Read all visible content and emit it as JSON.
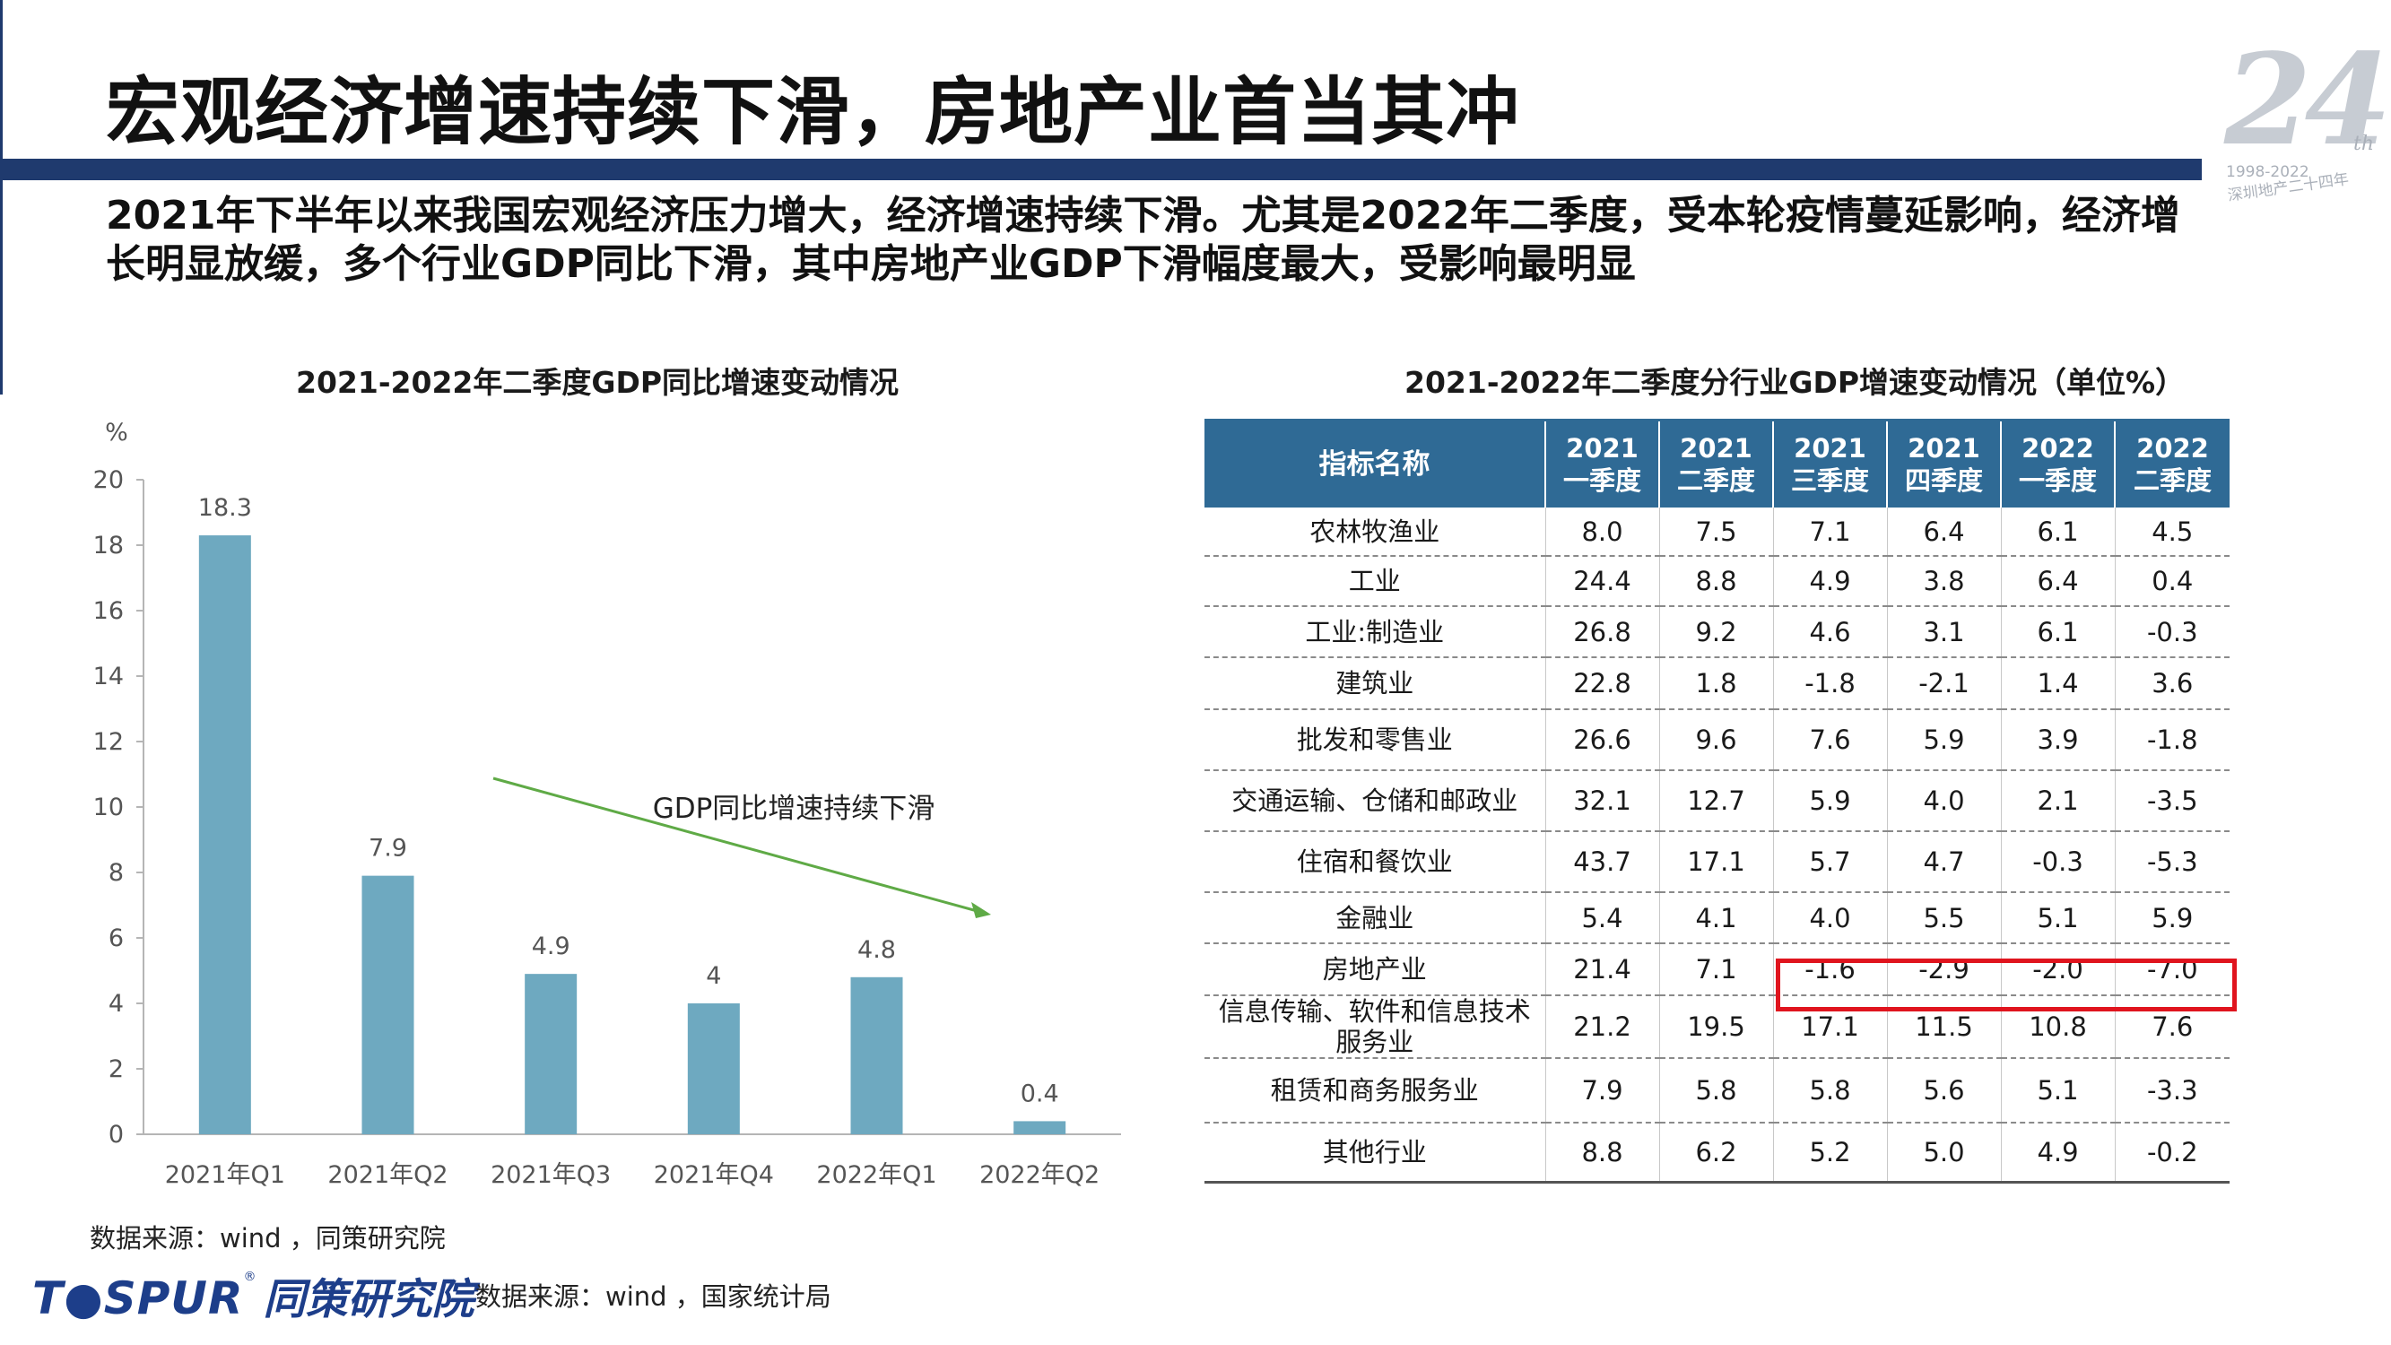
{
  "page": {
    "title": "宏观经济增速持续下滑，房地产业首当其冲",
    "summary": "2021年下半年以来我国宏观经济压力增大，经济增速持续下滑。尤其是2022年二季度，受本轮疫情蔓延影响，经济增长明显放缓，多个行业GDP同比下滑，其中房地产业GDP下滑幅度最大，受影响最明显"
  },
  "watermark": {
    "number": "24",
    "suffix": "th",
    "years": "1998-2022",
    "text": "深圳地产二十四年"
  },
  "chart_data": {
    "type": "bar",
    "title": "2021-2022年二季度GDP同比增速变动情况",
    "ylabel": "%",
    "ylim": [
      0,
      20
    ],
    "yticks": [
      0,
      2,
      4,
      6,
      8,
      10,
      12,
      14,
      16,
      18,
      20
    ],
    "categories": [
      "2021年Q1",
      "2021年Q2",
      "2021年Q3",
      "2021年Q4",
      "2022年Q1",
      "2022年Q2"
    ],
    "values": [
      18.3,
      7.9,
      4.9,
      4,
      4.8,
      0.4
    ],
    "value_labels": [
      "18.3",
      "7.9",
      "4.9",
      "4",
      "4.8",
      "0.4"
    ],
    "bar_color": "#6ea9c0",
    "grid": false,
    "annotation": {
      "text": "GDP同比增速持续下滑",
      "arrow_color": "#5faa46"
    }
  },
  "table": {
    "title": "2021-2022年二季度分行业GDP增速变动情况（单位%）",
    "headers": [
      [
        "指标名称",
        ""
      ],
      [
        "2021",
        "一季度"
      ],
      [
        "2021",
        "二季度"
      ],
      [
        "2021",
        "三季度"
      ],
      [
        "2021",
        "四季度"
      ],
      [
        "2022",
        "一季度"
      ],
      [
        "2022",
        "二季度"
      ]
    ],
    "rows": [
      [
        "农林牧渔业",
        "8.0",
        "7.5",
        "7.1",
        "6.4",
        "6.1",
        "4.5"
      ],
      [
        "工业",
        "24.4",
        "8.8",
        "4.9",
        "3.8",
        "6.4",
        "0.4"
      ],
      [
        "工业:制造业",
        "26.8",
        "9.2",
        "4.6",
        "3.1",
        "6.1",
        "-0.3"
      ],
      [
        "建筑业",
        "22.8",
        "1.8",
        "-1.8",
        "-2.1",
        "1.4",
        "3.6"
      ],
      [
        "批发和零售业",
        "26.6",
        "9.6",
        "7.6",
        "5.9",
        "3.9",
        "-1.8"
      ],
      [
        "交通运输、仓储和邮政业",
        "32.1",
        "12.7",
        "5.9",
        "4.0",
        "2.1",
        "-3.5"
      ],
      [
        "住宿和餐饮业",
        "43.7",
        "17.1",
        "5.7",
        "4.7",
        "-0.3",
        "-5.3"
      ],
      [
        "金融业",
        "5.4",
        "4.1",
        "4.0",
        "5.5",
        "5.1",
        "5.9"
      ],
      [
        "房地产业",
        "21.4",
        "7.1",
        "-1.6",
        "-2.9",
        "-2.0",
        "-7.0"
      ],
      [
        "信息传输、软件和信息技术服务业",
        "21.2",
        "19.5",
        "17.1",
        "11.5",
        "10.8",
        "7.6"
      ],
      [
        "租赁和商务服务业",
        "7.9",
        "5.8",
        "5.8",
        "5.6",
        "5.1",
        "-3.3"
      ],
      [
        "其他行业",
        "8.8",
        "6.2",
        "5.2",
        "5.0",
        "4.9",
        "-0.2"
      ]
    ],
    "highlight_color": "#e0141e",
    "header_color": "#2f6a95"
  },
  "sources": {
    "chart_source": "数据来源：wind ，同策研究院",
    "table_source": "数据来源：wind ，国家统计局"
  },
  "logo": {
    "en": "T●SPUR",
    "reg": "®",
    "cn": "同策研究院"
  }
}
